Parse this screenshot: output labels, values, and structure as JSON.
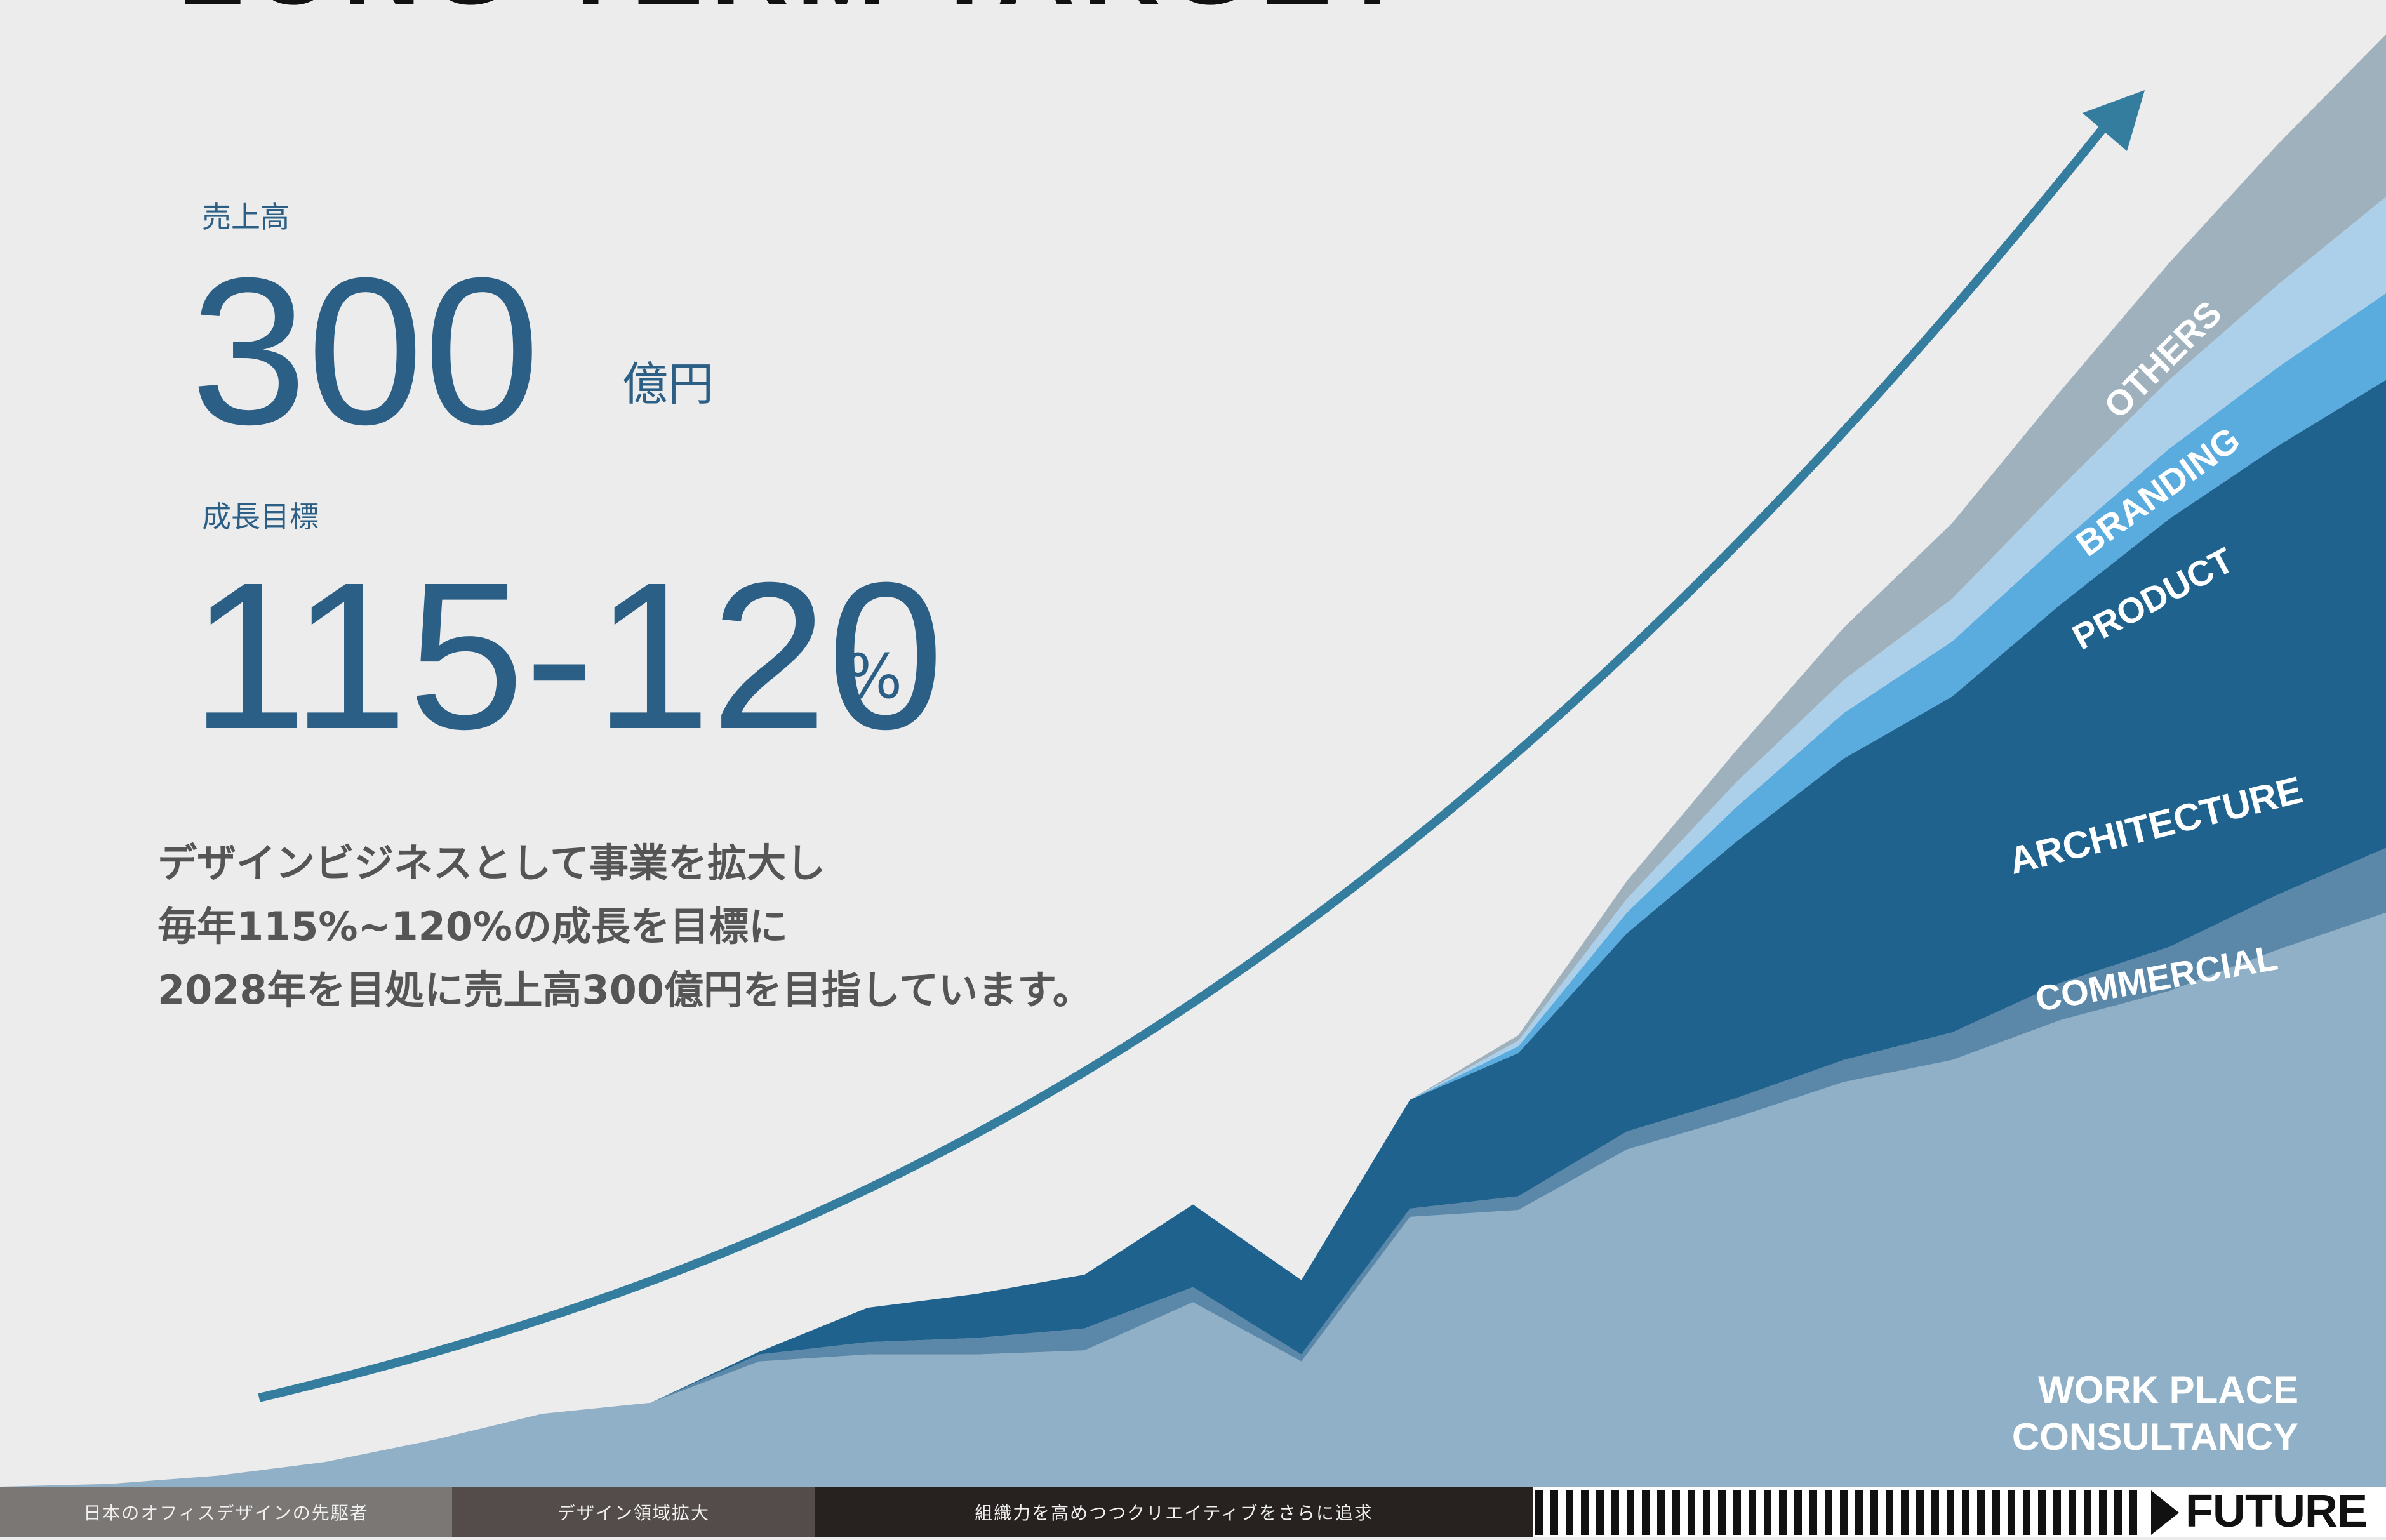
{
  "header": {
    "title": "LONG TERM TARGET"
  },
  "stats": {
    "sales_label": "売上高",
    "sales_value": "300",
    "sales_unit": "億円",
    "growth_label": "成長目標",
    "growth_value": "115-120",
    "growth_unit": "%"
  },
  "description": {
    "line1": "デザインビジネスとして事業を拡大し",
    "line2": "毎年115%~120%の成長を目標に",
    "line3": "2028年を目処に売上高300億円を目指しています。"
  },
  "timeline": {
    "segments": [
      {
        "label": "日本のオフィスデザインの先駆者",
        "color": "#7b7775"
      },
      {
        "label": "デザイン領域拡大",
        "color": "#544c4a"
      },
      {
        "label": "組織力を高めつつクリエイティブをさらに追求",
        "color": "#27221f"
      }
    ],
    "future_label": "FUTURE"
  },
  "chart_data": {
    "type": "area",
    "stacked": true,
    "title": "",
    "xlabel": "",
    "ylabel": "",
    "grid": false,
    "legend": "inline labels on right side of each band",
    "x": [
      0,
      1,
      2,
      3,
      4,
      5,
      6,
      7,
      8,
      9,
      10,
      11,
      12,
      13,
      14,
      15,
      16,
      17,
      18,
      19,
      20,
      21,
      22
    ],
    "series": [
      {
        "name": "WORK PLACE CONSULTANCY",
        "color": "#8fb0c6",
        "values": [
          0.0,
          0.2,
          0.8,
          1.8,
          3.4,
          5.3,
          6.1,
          9.1,
          9.6,
          9.6,
          9.9,
          13.4,
          9.1,
          19.6,
          20.1,
          24.5,
          26.8,
          29.4,
          31.0,
          33.9,
          36.0,
          39.0,
          41.7
        ]
      },
      {
        "name": "COMMERCIAL",
        "color": "#5b87a8",
        "values": [
          0,
          0,
          0,
          0,
          0,
          0,
          0,
          0.5,
          0.9,
          1.2,
          1.6,
          1.1,
          0.5,
          0.6,
          1.0,
          1.3,
          1.4,
          1.6,
          2.0,
          2.7,
          3.2,
          4.0,
          4.7
        ]
      },
      {
        "name": "ARCHITECTURE",
        "color": "#1f628d",
        "values": [
          0,
          0,
          0,
          0,
          0,
          0,
          0,
          0.2,
          2.5,
          3.2,
          3.9,
          6.0,
          5.4,
          7.9,
          10.4,
          14.4,
          18.6,
          21.9,
          24.4,
          27.5,
          31.1,
          32.6,
          34.0
        ]
      },
      {
        "name": "PRODUCT",
        "color": "#5aabde",
        "values": [
          0,
          0,
          0,
          0,
          0,
          0,
          0,
          0,
          0,
          0,
          0,
          0,
          0,
          0,
          0.5,
          1.5,
          2.5,
          3.3,
          4.0,
          4.5,
          5.1,
          5.7,
          6.3
        ]
      },
      {
        "name": "BRANDING",
        "color": "#add0ea",
        "values": [
          0,
          0,
          0,
          0,
          0,
          0,
          0,
          0,
          0,
          0,
          0,
          0,
          0,
          0,
          0.4,
          1.0,
          1.8,
          2.4,
          3.1,
          4.0,
          5.0,
          6.0,
          7.0
        ]
      },
      {
        "name": "OTHERS",
        "color": "#9fb1bd",
        "values": [
          0,
          0,
          0,
          0,
          0,
          0,
          0,
          0,
          0,
          0,
          0,
          0,
          0,
          0,
          0.4,
          1.3,
          2.3,
          3.8,
          5.5,
          7.0,
          8.5,
          10.2,
          11.8
        ]
      }
    ],
    "xlim": [
      0,
      22
    ],
    "ylim": [
      0,
      108
    ],
    "trend_arrow_color": "#357d9e"
  }
}
